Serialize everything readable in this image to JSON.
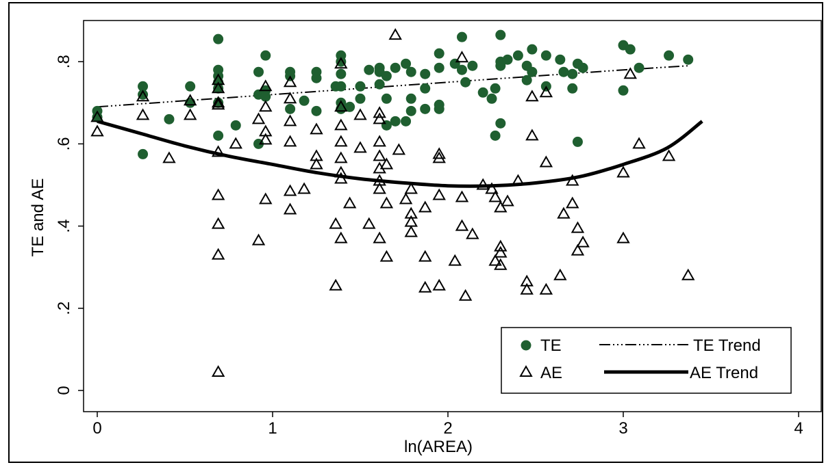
{
  "chart_data": {
    "type": "scatter",
    "xlabel": "ln(AREA)",
    "ylabel": "TE and AE",
    "xlim": [
      0,
      4
    ],
    "ylim": [
      0,
      0.9
    ],
    "x_ticks": [
      "0",
      "1",
      "2",
      "3",
      "4"
    ],
    "y_ticks": [
      "0",
      ".2",
      ".4",
      ".6",
      ".8"
    ],
    "grid": false,
    "legend_position": "bottom-right",
    "legend": {
      "te": "TE",
      "te_trend": "TE Trend",
      "ae": "AE",
      "ae_trend": "AE Trend"
    },
    "colors": {
      "te": "#1f5f30",
      "ae": "#000000",
      "trend": "#000000"
    },
    "series": [
      {
        "name": "TE",
        "marker": "filled-circle",
        "points": [
          [
            0.0,
            0.68
          ],
          [
            0.0,
            0.665
          ],
          [
            0.26,
            0.74
          ],
          [
            0.26,
            0.72
          ],
          [
            0.26,
            0.575
          ],
          [
            0.41,
            0.66
          ],
          [
            0.53,
            0.74
          ],
          [
            0.53,
            0.7
          ],
          [
            0.69,
            0.855
          ],
          [
            0.69,
            0.78
          ],
          [
            0.69,
            0.765
          ],
          [
            0.69,
            0.75
          ],
          [
            0.69,
            0.735
          ],
          [
            0.69,
            0.7
          ],
          [
            0.69,
            0.62
          ],
          [
            0.79,
            0.645
          ],
          [
            0.92,
            0.775
          ],
          [
            0.92,
            0.72
          ],
          [
            0.92,
            0.6
          ],
          [
            0.96,
            0.815
          ],
          [
            0.96,
            0.73
          ],
          [
            0.96,
            0.715
          ],
          [
            1.1,
            0.775
          ],
          [
            1.1,
            0.765
          ],
          [
            1.1,
            0.685
          ],
          [
            1.18,
            0.705
          ],
          [
            1.25,
            0.775
          ],
          [
            1.25,
            0.76
          ],
          [
            1.25,
            0.68
          ],
          [
            1.36,
            0.74
          ],
          [
            1.39,
            0.815
          ],
          [
            1.39,
            0.8
          ],
          [
            1.39,
            0.77
          ],
          [
            1.39,
            0.74
          ],
          [
            1.39,
            0.7
          ],
          [
            1.39,
            0.685
          ],
          [
            1.44,
            0.69
          ],
          [
            1.5,
            0.74
          ],
          [
            1.5,
            0.71
          ],
          [
            1.55,
            0.78
          ],
          [
            1.61,
            0.785
          ],
          [
            1.61,
            0.775
          ],
          [
            1.61,
            0.745
          ],
          [
            1.65,
            0.765
          ],
          [
            1.65,
            0.71
          ],
          [
            1.65,
            0.645
          ],
          [
            1.7,
            0.785
          ],
          [
            1.7,
            0.655
          ],
          [
            1.76,
            0.795
          ],
          [
            1.76,
            0.655
          ],
          [
            1.79,
            0.775
          ],
          [
            1.79,
            0.71
          ],
          [
            1.79,
            0.68
          ],
          [
            1.87,
            0.77
          ],
          [
            1.87,
            0.735
          ],
          [
            1.87,
            0.685
          ],
          [
            1.95,
            0.82
          ],
          [
            1.95,
            0.785
          ],
          [
            1.95,
            0.695
          ],
          [
            1.95,
            0.685
          ],
          [
            2.04,
            0.795
          ],
          [
            2.08,
            0.86
          ],
          [
            2.08,
            0.78
          ],
          [
            2.1,
            0.75
          ],
          [
            2.14,
            0.79
          ],
          [
            2.2,
            0.725
          ],
          [
            2.25,
            0.71
          ],
          [
            2.27,
            0.735
          ],
          [
            2.27,
            0.62
          ],
          [
            2.3,
            0.865
          ],
          [
            2.3,
            0.8
          ],
          [
            2.3,
            0.79
          ],
          [
            2.3,
            0.65
          ],
          [
            2.34,
            0.805
          ],
          [
            2.4,
            0.815
          ],
          [
            2.45,
            0.79
          ],
          [
            2.45,
            0.755
          ],
          [
            2.48,
            0.83
          ],
          [
            2.48,
            0.775
          ],
          [
            2.56,
            0.815
          ],
          [
            2.56,
            0.74
          ],
          [
            2.64,
            0.805
          ],
          [
            2.66,
            0.775
          ],
          [
            2.71,
            0.77
          ],
          [
            2.71,
            0.735
          ],
          [
            2.74,
            0.795
          ],
          [
            2.74,
            0.605
          ],
          [
            2.77,
            0.785
          ],
          [
            3.0,
            0.84
          ],
          [
            3.0,
            0.73
          ],
          [
            3.04,
            0.83
          ],
          [
            3.09,
            0.785
          ],
          [
            3.26,
            0.815
          ],
          [
            3.37,
            0.805
          ]
        ]
      },
      {
        "name": "AE",
        "marker": "hollow-triangle",
        "points": [
          [
            0.0,
            0.665
          ],
          [
            0.0,
            0.63
          ],
          [
            0.26,
            0.715
          ],
          [
            0.26,
            0.67
          ],
          [
            0.41,
            0.565
          ],
          [
            0.53,
            0.705
          ],
          [
            0.53,
            0.67
          ],
          [
            0.69,
            0.755
          ],
          [
            0.69,
            0.735
          ],
          [
            0.69,
            0.7
          ],
          [
            0.69,
            0.695
          ],
          [
            0.69,
            0.58
          ],
          [
            0.69,
            0.475
          ],
          [
            0.69,
            0.405
          ],
          [
            0.69,
            0.33
          ],
          [
            0.69,
            0.045
          ],
          [
            0.79,
            0.6
          ],
          [
            0.92,
            0.66
          ],
          [
            0.92,
            0.365
          ],
          [
            0.96,
            0.74
          ],
          [
            0.96,
            0.69
          ],
          [
            0.96,
            0.63
          ],
          [
            0.96,
            0.61
          ],
          [
            0.96,
            0.465
          ],
          [
            1.1,
            0.75
          ],
          [
            1.1,
            0.71
          ],
          [
            1.1,
            0.655
          ],
          [
            1.1,
            0.605
          ],
          [
            1.1,
            0.485
          ],
          [
            1.1,
            0.44
          ],
          [
            1.18,
            0.49
          ],
          [
            1.25,
            0.635
          ],
          [
            1.25,
            0.57
          ],
          [
            1.25,
            0.55
          ],
          [
            1.36,
            0.405
          ],
          [
            1.36,
            0.255
          ],
          [
            1.39,
            0.795
          ],
          [
            1.39,
            0.69
          ],
          [
            1.39,
            0.645
          ],
          [
            1.39,
            0.605
          ],
          [
            1.39,
            0.565
          ],
          [
            1.39,
            0.53
          ],
          [
            1.39,
            0.515
          ],
          [
            1.39,
            0.37
          ],
          [
            1.44,
            0.455
          ],
          [
            1.5,
            0.67
          ],
          [
            1.5,
            0.59
          ],
          [
            1.55,
            0.405
          ],
          [
            1.61,
            0.675
          ],
          [
            1.61,
            0.66
          ],
          [
            1.61,
            0.605
          ],
          [
            1.61,
            0.57
          ],
          [
            1.61,
            0.54
          ],
          [
            1.61,
            0.51
          ],
          [
            1.61,
            0.49
          ],
          [
            1.61,
            0.37
          ],
          [
            1.65,
            0.55
          ],
          [
            1.65,
            0.455
          ],
          [
            1.65,
            0.325
          ],
          [
            1.7,
            0.865
          ],
          [
            1.72,
            0.585
          ],
          [
            1.76,
            0.465
          ],
          [
            1.79,
            0.49
          ],
          [
            1.79,
            0.43
          ],
          [
            1.79,
            0.41
          ],
          [
            1.79,
            0.385
          ],
          [
            1.87,
            0.445
          ],
          [
            1.87,
            0.325
          ],
          [
            1.87,
            0.25
          ],
          [
            1.95,
            0.575
          ],
          [
            1.95,
            0.565
          ],
          [
            1.95,
            0.475
          ],
          [
            1.95,
            0.255
          ],
          [
            2.04,
            0.315
          ],
          [
            2.08,
            0.81
          ],
          [
            2.08,
            0.47
          ],
          [
            2.08,
            0.4
          ],
          [
            2.1,
            0.23
          ],
          [
            2.14,
            0.38
          ],
          [
            2.2,
            0.5
          ],
          [
            2.25,
            0.49
          ],
          [
            2.27,
            0.47
          ],
          [
            2.27,
            0.315
          ],
          [
            2.3,
            0.445
          ],
          [
            2.3,
            0.35
          ],
          [
            2.3,
            0.335
          ],
          [
            2.3,
            0.305
          ],
          [
            2.34,
            0.46
          ],
          [
            2.4,
            0.51
          ],
          [
            2.45,
            0.265
          ],
          [
            2.45,
            0.245
          ],
          [
            2.48,
            0.715
          ],
          [
            2.48,
            0.62
          ],
          [
            2.56,
            0.725
          ],
          [
            2.56,
            0.555
          ],
          [
            2.56,
            0.245
          ],
          [
            2.64,
            0.28
          ],
          [
            2.66,
            0.43
          ],
          [
            2.71,
            0.51
          ],
          [
            2.71,
            0.455
          ],
          [
            2.74,
            0.395
          ],
          [
            2.74,
            0.34
          ],
          [
            2.77,
            0.36
          ],
          [
            3.0,
            0.53
          ],
          [
            3.0,
            0.37
          ],
          [
            3.04,
            0.77
          ],
          [
            3.09,
            0.6
          ],
          [
            3.26,
            0.57
          ],
          [
            3.37,
            0.28
          ]
        ]
      },
      {
        "name": "TE Trend",
        "line": "dash-dot-dot",
        "points": [
          [
            0.0,
            0.69
          ],
          [
            1.0,
            0.72
          ],
          [
            2.0,
            0.75
          ],
          [
            3.0,
            0.78
          ],
          [
            3.37,
            0.79
          ]
        ]
      },
      {
        "name": "AE Trend",
        "line": "solid-thick",
        "points": [
          [
            0.0,
            0.655
          ],
          [
            0.25,
            0.625
          ],
          [
            0.5,
            0.595
          ],
          [
            0.75,
            0.57
          ],
          [
            1.0,
            0.55
          ],
          [
            1.25,
            0.53
          ],
          [
            1.5,
            0.515
          ],
          [
            1.75,
            0.505
          ],
          [
            2.0,
            0.498
          ],
          [
            2.25,
            0.498
          ],
          [
            2.5,
            0.505
          ],
          [
            2.75,
            0.52
          ],
          [
            3.0,
            0.55
          ],
          [
            3.25,
            0.59
          ],
          [
            3.45,
            0.655
          ]
        ]
      }
    ]
  }
}
